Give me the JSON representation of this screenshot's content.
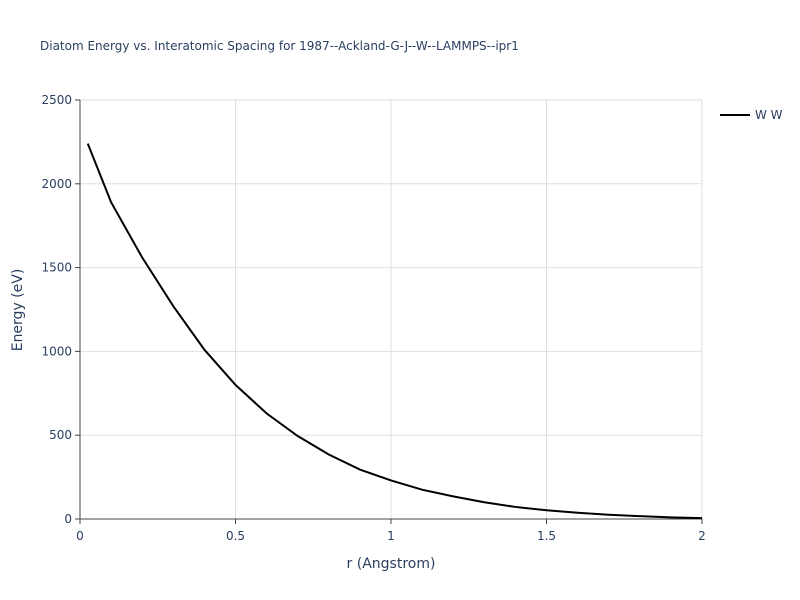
{
  "chart_data": {
    "type": "line",
    "title": "Diatom Energy vs. Interatomic Spacing for 1987--Ackland-G-J--W--LAMMPS--ipr1",
    "x_label": "r (Angstrom)",
    "y_label": "Energy (eV)",
    "x": [
      0.025,
      0.1,
      0.2,
      0.3,
      0.4,
      0.5,
      0.6,
      0.7,
      0.8,
      0.9,
      1.0,
      1.1,
      1.2,
      1.3,
      1.4,
      1.5,
      1.6,
      1.7,
      1.8,
      1.9,
      2.0
    ],
    "series": [
      {
        "name": "W W",
        "color": "#000000",
        "values": [
          2240,
          1890,
          1560,
          1270,
          1010,
          800,
          630,
          495,
          385,
          295,
          230,
          175,
          135,
          100,
          72,
          52,
          37,
          25,
          17,
          10,
          5
        ]
      }
    ],
    "xlim": [
      0,
      2
    ],
    "xticks": [
      0,
      0.5,
      1,
      1.5,
      2
    ],
    "ylim": [
      0,
      2500
    ],
    "yticks": [
      0,
      500,
      1000,
      1500,
      2000,
      2500
    ],
    "grid": true,
    "legend": "right"
  }
}
